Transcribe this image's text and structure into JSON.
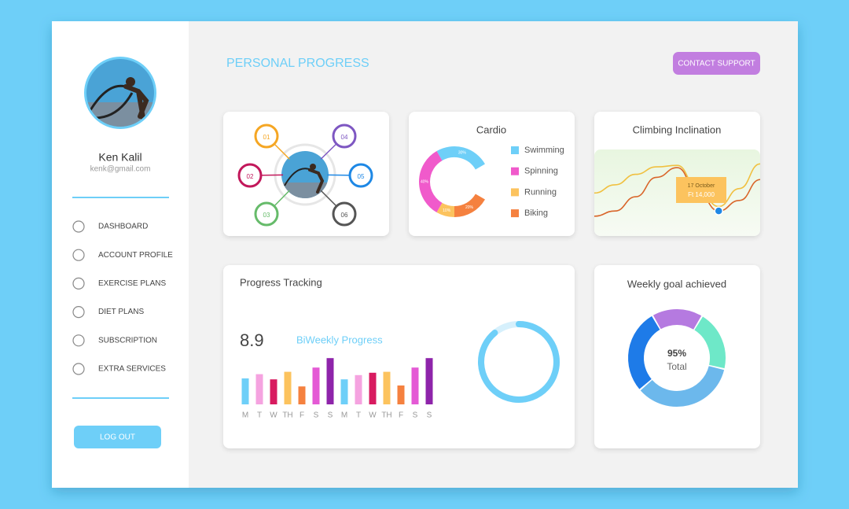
{
  "sidebar": {
    "name": "Ken Kalil",
    "email": "kenk@gmail.com",
    "nav": [
      "DASHBOARD",
      "ACCOUNT PROFILE",
      "EXERCISE PLANS",
      "DIET PLANS",
      "SUBSCRIPTION",
      "EXTRA SERVICES"
    ],
    "logout": "LOG OUT"
  },
  "header": {
    "title": "PERSONAL PROGRESS",
    "contact_support": "CONTACT SUPPORT"
  },
  "steps": [
    "01",
    "02",
    "03",
    "04",
    "05",
    "06"
  ],
  "chart_data": [
    {
      "type": "donut",
      "title": "Cardio",
      "categories": [
        "Swimming",
        "Spinning",
        "Running",
        "Biking"
      ],
      "values": [
        30,
        40,
        10,
        20
      ],
      "value_labels": [
        "30%",
        "40%",
        "10%",
        "20%"
      ],
      "colors": [
        "#6ecff8",
        "#f05acb",
        "#fcc35e",
        "#f5813f"
      ]
    },
    {
      "type": "line",
      "title": "Climbing Inclination",
      "categories": [
        null,
        null,
        null,
        null,
        null,
        null,
        null,
        null,
        null
      ],
      "series": [
        {
          "color": "#f0c040",
          "values": [
            47,
            58,
            72,
            82,
            84,
            53,
            29,
            53,
            86
          ]
        },
        {
          "color": "#d9652a",
          "values": [
            16,
            23,
            42,
            68,
            81,
            47,
            23,
            37,
            65
          ]
        }
      ],
      "ylim": [
        0,
        100
      ],
      "annotation": {
        "date": "17 October",
        "text": "Ft 14,000"
      }
    },
    {
      "type": "bar",
      "title": "Progress Tracking",
      "value": 8.9,
      "value_caption": "BiWeekly Progress",
      "categories": [
        "M",
        "T",
        "W",
        "TH",
        "F",
        "S",
        "S",
        "M",
        "T",
        "W",
        "TH",
        "F",
        "S",
        "S"
      ],
      "values": [
        5.5,
        6.4,
        5.3,
        6.9,
        3.8,
        7.8,
        9.8,
        5.3,
        6.2,
        6.7,
        6.9,
        4.0,
        7.8,
        9.8
      ],
      "colors": [
        "#6ecff8",
        "#f5a3e0",
        "#d81b60",
        "#fcc35e",
        "#f5813f",
        "#e45ad5",
        "#8e24aa",
        "#6ecff8",
        "#f5a3e0",
        "#d81b60",
        "#fcc35e",
        "#f5813f",
        "#e45ad5",
        "#8e24aa"
      ],
      "ylim": [
        0,
        10
      ]
    },
    {
      "type": "donut",
      "title": "Weekly goal achieved",
      "values": [
        17,
        20,
        35,
        28
      ],
      "colors": [
        "#b57ae0",
        "#6ee8c8",
        "#6cb8ec",
        "#1e7be8"
      ],
      "total": {
        "value": 95,
        "label": "95%"
      },
      "total_caption": "Total"
    }
  ]
}
